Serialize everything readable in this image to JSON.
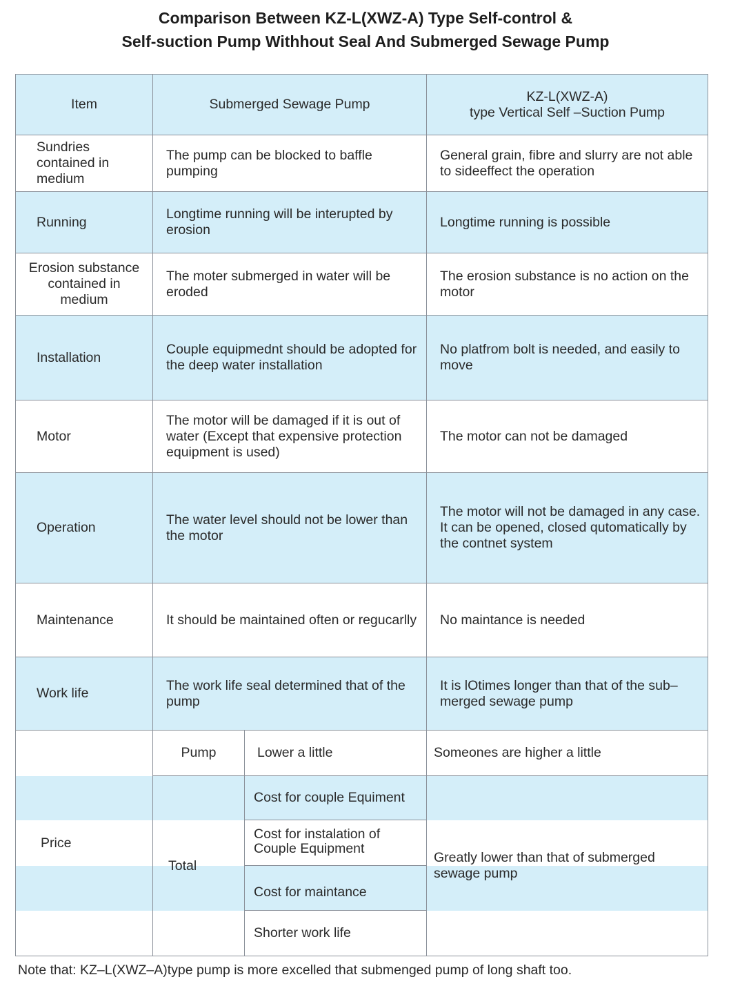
{
  "title": {
    "line1": "Comparison Between KZ-L(XWZ-A) Type Self-control &",
    "line2": "Self-suction Pump Withhout Seal And Submerged Sewage Pump"
  },
  "header": {
    "item": "Item",
    "submerged": "Submerged Sewage Pump",
    "kz_line1": "KZ-L(XWZ-A)",
    "kz_line2": "type Vertical Self –Suction Pump"
  },
  "rows": [
    {
      "item": "Sundries contained in medium",
      "submerged": "The pump can be blocked to baffle pumping",
      "kz": "General grain, fibre and slurry are not able to sideeffect the operation"
    },
    {
      "item": "Running",
      "submerged": "Longtime running will be interupted by erosion",
      "kz": "Longtime running is possible"
    },
    {
      "item": "Erosion substance contained in medium",
      "submerged": "The moter submerged in water will be eroded",
      "kz": "The erosion substance is no action on the motor"
    },
    {
      "item": "Installation",
      "submerged": "Couple equipmednt should be adopted for  the  deep  water  installation",
      "kz": "No platfrom bolt is needed, and easily to move"
    },
    {
      "item": "Motor",
      "submerged": "The motor will be damaged if it is out of water (Except that expensive protection equipment is used)",
      "kz": "The motor can not be damaged"
    },
    {
      "item": "Operation",
      "submerged": "The water level should not be lower than the motor",
      "kz": "The motor will not be damaged in any case. It  can  be  opened,  closed  qutomatically by the contnet system"
    },
    {
      "item": "Maintenance",
      "submerged": "It should be maintained often or regucarlly",
      "kz": "No maintance is needed"
    },
    {
      "item": "Work life",
      "submerged": "The work life seal determined that of the pump",
      "kz": "It is lOtimes longer than that of the sub–merged sewage pump"
    }
  ],
  "price": {
    "label": "Price",
    "pump": "Pump",
    "pump_submerged": "Lower a little",
    "pump_kz": "Someones are higher a little",
    "total": "Total",
    "total_items": [
      "Cost for couple Equiment",
      "Cost for instalation of Couple Equipment",
      "Cost for maintance",
      "Shorter work life"
    ],
    "total_kz": "Greatly lower than that of submerged sewage pump"
  },
  "note": "Note that: KZ–L(XWZ–A)type pump is more excelled that submenged pump of long shaft too.",
  "colors": {
    "band": "#d4eef9",
    "border": "#8a9099"
  }
}
